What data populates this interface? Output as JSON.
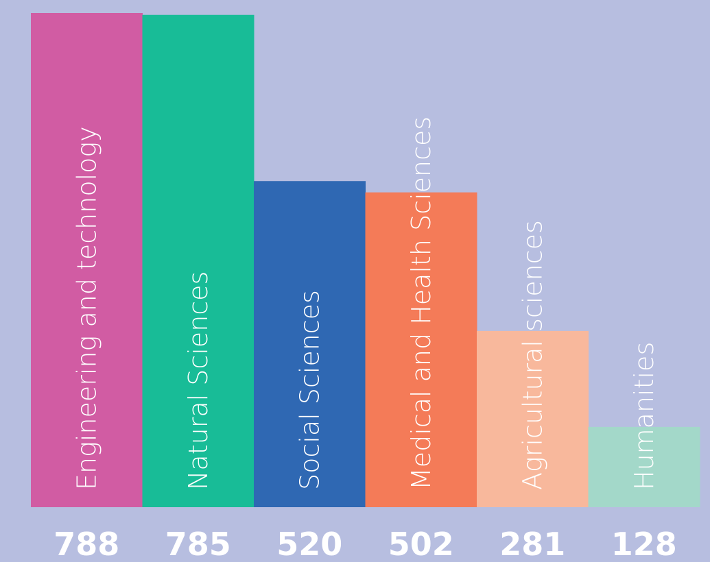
{
  "chart_data": {
    "type": "bar",
    "categories": [
      "Engineering and technology",
      "Natural Sciences",
      "Social Sciences",
      "Medical and Health Sciences",
      "Agricultural sciences",
      "Humanities"
    ],
    "values": [
      788,
      785,
      520,
      502,
      281,
      128
    ],
    "value_labels": [
      "788",
      "785",
      "520",
      "502",
      "281",
      "128"
    ],
    "colors": [
      "#d15ca3",
      "#18bc97",
      "#2f68b3",
      "#f47b58",
      "#f8b89c",
      "#a3d8c9"
    ],
    "background": "#b7bee0",
    "label_color": "#ffffff",
    "ylim": [
      0,
      788
    ],
    "grid": false,
    "legend": "none"
  }
}
